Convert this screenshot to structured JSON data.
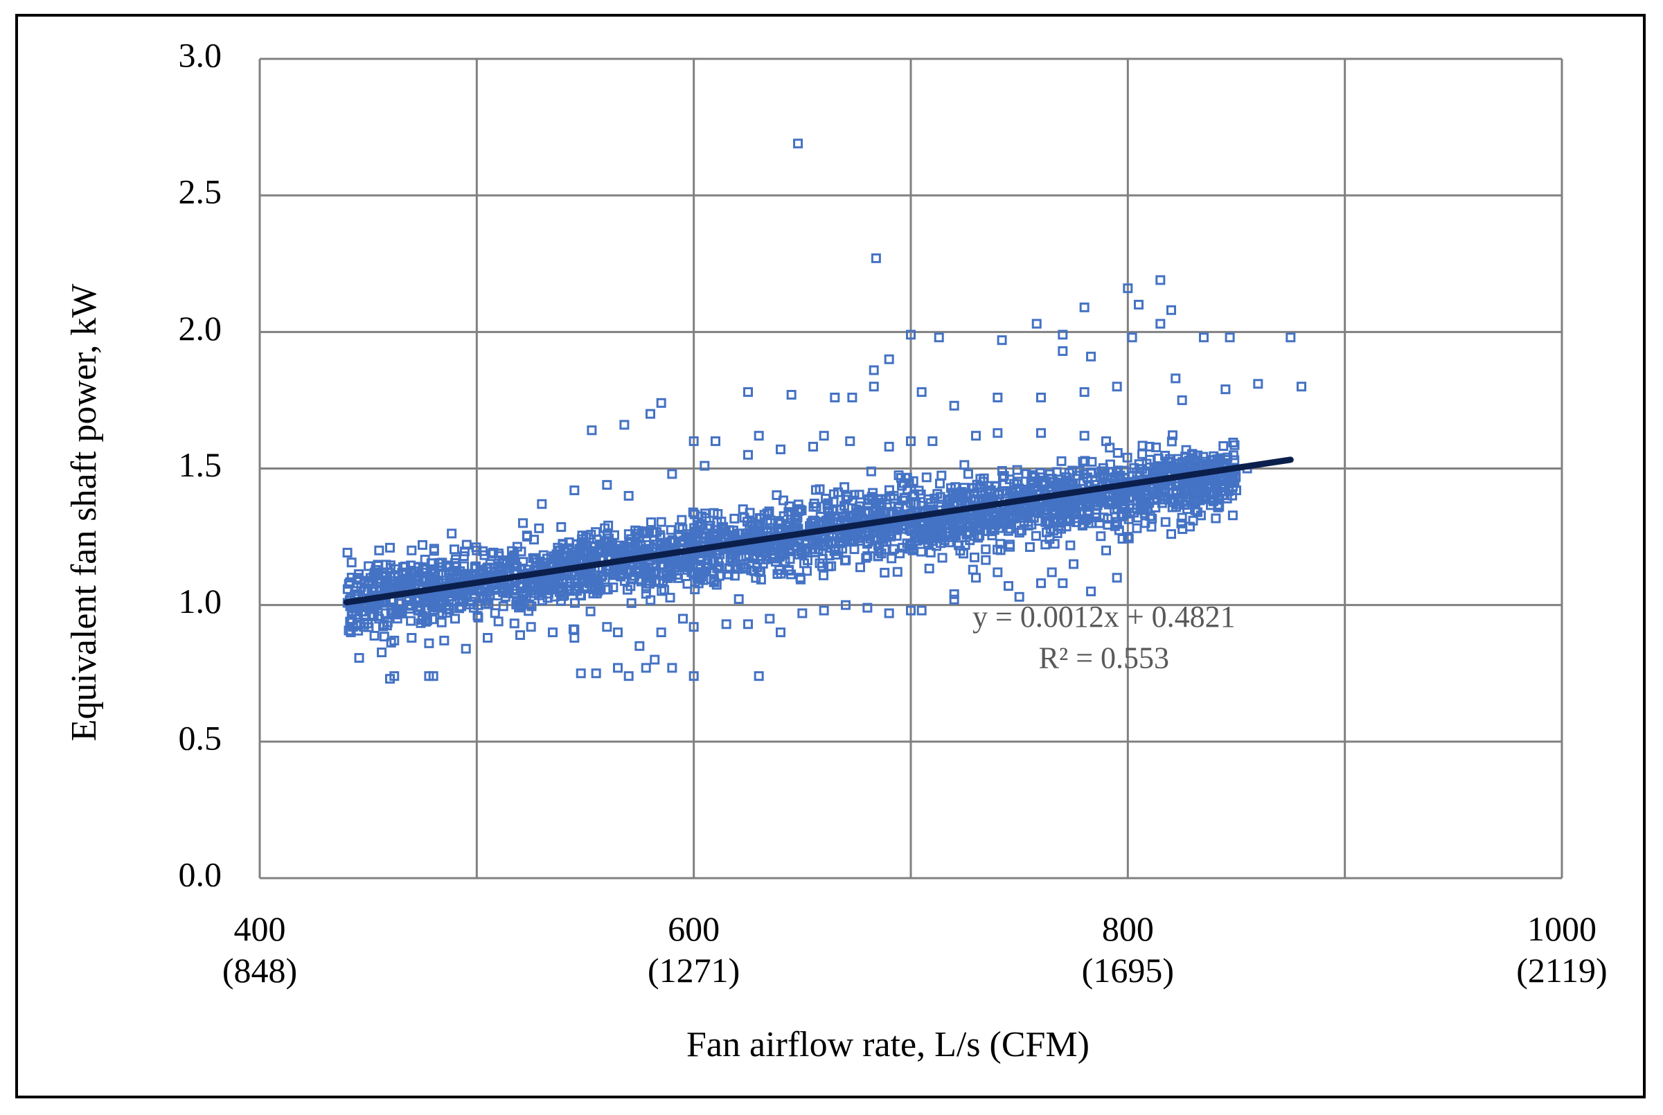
{
  "chart_data": {
    "type": "scatter",
    "title": "",
    "xlabel": "Fan airflow rate, L/s (CFM)",
    "ylabel": "Equivalent fan shaft power, kW",
    "xlim": [
      400,
      1000
    ],
    "ylim": [
      0.0,
      3.0
    ],
    "x_ticks": [
      {
        "value": 400,
        "label": "400",
        "sublabel": "(848)"
      },
      {
        "value": 600,
        "label": "600",
        "sublabel": "(1271)"
      },
      {
        "value": 800,
        "label": "800",
        "sublabel": "(1695)"
      },
      {
        "value": 1000,
        "label": "1000",
        "sublabel": "(2119)"
      }
    ],
    "x_gridlines": [
      400,
      500,
      600,
      700,
      800,
      900,
      1000
    ],
    "y_ticks": [
      {
        "value": 0.0,
        "label": "0.0"
      },
      {
        "value": 0.5,
        "label": "0.5"
      },
      {
        "value": 1.0,
        "label": "1.0"
      },
      {
        "value": 1.5,
        "label": "1.5"
      },
      {
        "value": 2.0,
        "label": "2.0"
      },
      {
        "value": 2.5,
        "label": "2.5"
      },
      {
        "value": 3.0,
        "label": "3.0"
      }
    ],
    "grid": true,
    "legend": "none",
    "marker": "hollow-square",
    "colors": {
      "points": "#4472C4",
      "trendline": "#0B1F4D",
      "grid": "#808080",
      "annotation": "#595959"
    },
    "cloud": {
      "description_points": [
        [
          440,
          1.02
        ],
        [
          460,
          1.04
        ],
        [
          480,
          1.06
        ],
        [
          500,
          1.08
        ],
        [
          520,
          1.1
        ],
        [
          540,
          1.12
        ],
        [
          560,
          1.14
        ],
        [
          580,
          1.17
        ],
        [
          600,
          1.19
        ],
        [
          620,
          1.21
        ],
        [
          640,
          1.24
        ],
        [
          660,
          1.27
        ],
        [
          680,
          1.29
        ],
        [
          700,
          1.31
        ],
        [
          720,
          1.33
        ],
        [
          740,
          1.35
        ],
        [
          760,
          1.37
        ],
        [
          780,
          1.39
        ],
        [
          800,
          1.41
        ],
        [
          820,
          1.44
        ],
        [
          840,
          1.46
        ]
      ],
      "spread": 0.09
    },
    "points": [
      [
        648,
        2.69
      ],
      [
        684,
        2.27
      ],
      [
        815,
        2.19
      ],
      [
        800,
        2.16
      ],
      [
        805,
        2.1
      ],
      [
        780,
        2.09
      ],
      [
        820,
        2.08
      ],
      [
        815,
        2.03
      ],
      [
        758,
        2.03
      ],
      [
        875,
        1.98
      ],
      [
        847,
        1.98
      ],
      [
        835,
        1.98
      ],
      [
        802,
        1.98
      ],
      [
        770,
        1.99
      ],
      [
        742,
        1.97
      ],
      [
        713,
        1.98
      ],
      [
        700,
        1.99
      ],
      [
        690,
        1.9
      ],
      [
        770,
        1.93
      ],
      [
        783,
        1.91
      ],
      [
        860,
        1.81
      ],
      [
        845,
        1.79
      ],
      [
        880,
        1.8
      ],
      [
        825,
        1.75
      ],
      [
        822,
        1.83
      ],
      [
        795,
        1.8
      ],
      [
        780,
        1.78
      ],
      [
        760,
        1.76
      ],
      [
        740,
        1.76
      ],
      [
        720,
        1.73
      ],
      [
        705,
        1.78
      ],
      [
        683,
        1.86
      ],
      [
        683,
        1.8
      ],
      [
        673,
        1.76
      ],
      [
        665,
        1.76
      ],
      [
        645,
        1.77
      ],
      [
        625,
        1.78
      ],
      [
        585,
        1.74
      ],
      [
        580,
        1.7
      ],
      [
        568,
        1.66
      ],
      [
        553,
        1.64
      ],
      [
        600,
        1.6
      ],
      [
        610,
        1.6
      ],
      [
        630,
        1.62
      ],
      [
        660,
        1.62
      ],
      [
        700,
        1.6
      ],
      [
        740,
        1.63
      ],
      [
        790,
        1.6
      ],
      [
        455,
        1.2
      ],
      [
        460,
        1.21
      ],
      [
        470,
        1.2
      ],
      [
        475,
        1.22
      ],
      [
        445,
        1.1
      ],
      [
        450,
        1.08
      ],
      [
        442,
        0.9
      ],
      [
        448,
        0.92
      ],
      [
        455,
        0.95
      ],
      [
        462,
        0.87
      ],
      [
        470,
        0.88
      ],
      [
        478,
        0.86
      ],
      [
        485,
        0.87
      ],
      [
        495,
        0.84
      ],
      [
        460,
        0.73
      ],
      [
        462,
        0.74
      ],
      [
        478,
        0.74
      ],
      [
        480,
        0.74
      ],
      [
        548,
        0.75
      ],
      [
        555,
        0.75
      ],
      [
        565,
        0.77
      ],
      [
        570,
        0.74
      ],
      [
        578,
        0.77
      ],
      [
        582,
        0.8
      ],
      [
        590,
        0.77
      ],
      [
        600,
        0.74
      ],
      [
        630,
        0.74
      ],
      [
        595,
        0.95
      ],
      [
        625,
        0.93
      ],
      [
        640,
        0.9
      ],
      [
        660,
        0.98
      ],
      [
        680,
        0.99
      ],
      [
        700,
        0.98
      ],
      [
        720,
        1.04
      ],
      [
        750,
        1.03
      ],
      [
        770,
        1.08
      ],
      [
        783,
        1.05
      ],
      [
        795,
        1.1
      ],
      [
        820,
        1.26
      ],
      [
        808,
        1.3
      ],
      [
        790,
        1.2
      ],
      [
        760,
        1.08
      ],
      [
        740,
        1.12
      ],
      [
        730,
        1.1
      ],
      [
        500,
        1.2
      ],
      [
        505,
        0.88
      ],
      [
        520,
        0.89
      ],
      [
        535,
        0.9
      ],
      [
        545,
        0.88
      ],
      [
        560,
        0.92
      ],
      [
        575,
        0.85
      ],
      [
        530,
        1.37
      ],
      [
        545,
        1.42
      ],
      [
        560,
        1.44
      ],
      [
        570,
        1.4
      ],
      [
        590,
        1.48
      ],
      [
        605,
        1.51
      ],
      [
        625,
        1.55
      ],
      [
        640,
        1.57
      ],
      [
        655,
        1.58
      ],
      [
        672,
        1.6
      ],
      [
        690,
        1.58
      ],
      [
        710,
        1.6
      ],
      [
        730,
        1.62
      ],
      [
        760,
        1.63
      ],
      [
        780,
        1.62
      ],
      [
        810,
        1.58
      ],
      [
        830,
        1.55
      ],
      [
        845,
        1.52
      ],
      [
        855,
        1.5
      ],
      [
        840,
        1.45
      ],
      [
        850,
        1.42
      ],
      [
        835,
        1.4
      ],
      [
        825,
        1.32
      ],
      [
        800,
        1.25
      ],
      [
        775,
        1.15
      ],
      [
        765,
        1.12
      ],
      [
        745,
        1.07
      ],
      [
        720,
        1.02
      ],
      [
        705,
        0.98
      ],
      [
        690,
        0.97
      ],
      [
        670,
        1.0
      ],
      [
        650,
        0.97
      ],
      [
        635,
        0.95
      ],
      [
        615,
        0.93
      ],
      [
        600,
        0.92
      ],
      [
        585,
        0.9
      ],
      [
        565,
        0.9
      ],
      [
        545,
        0.91
      ],
      [
        525,
        0.92
      ],
      [
        510,
        0.94
      ],
      [
        490,
        0.95
      ],
      [
        475,
        0.96
      ],
      [
        458,
        0.97
      ],
      [
        448,
        1.05
      ]
    ],
    "trendline": {
      "type": "linear",
      "slope": 0.0012,
      "intercept": 0.4821,
      "x_start": 440,
      "x_end": 875
    },
    "annotations": [
      {
        "text": "y = 0.0012x  + 0.4821",
        "x": 789,
        "y": 0.92
      },
      {
        "text": "R² = 0.553",
        "x": 789,
        "y": 0.77
      }
    ]
  }
}
